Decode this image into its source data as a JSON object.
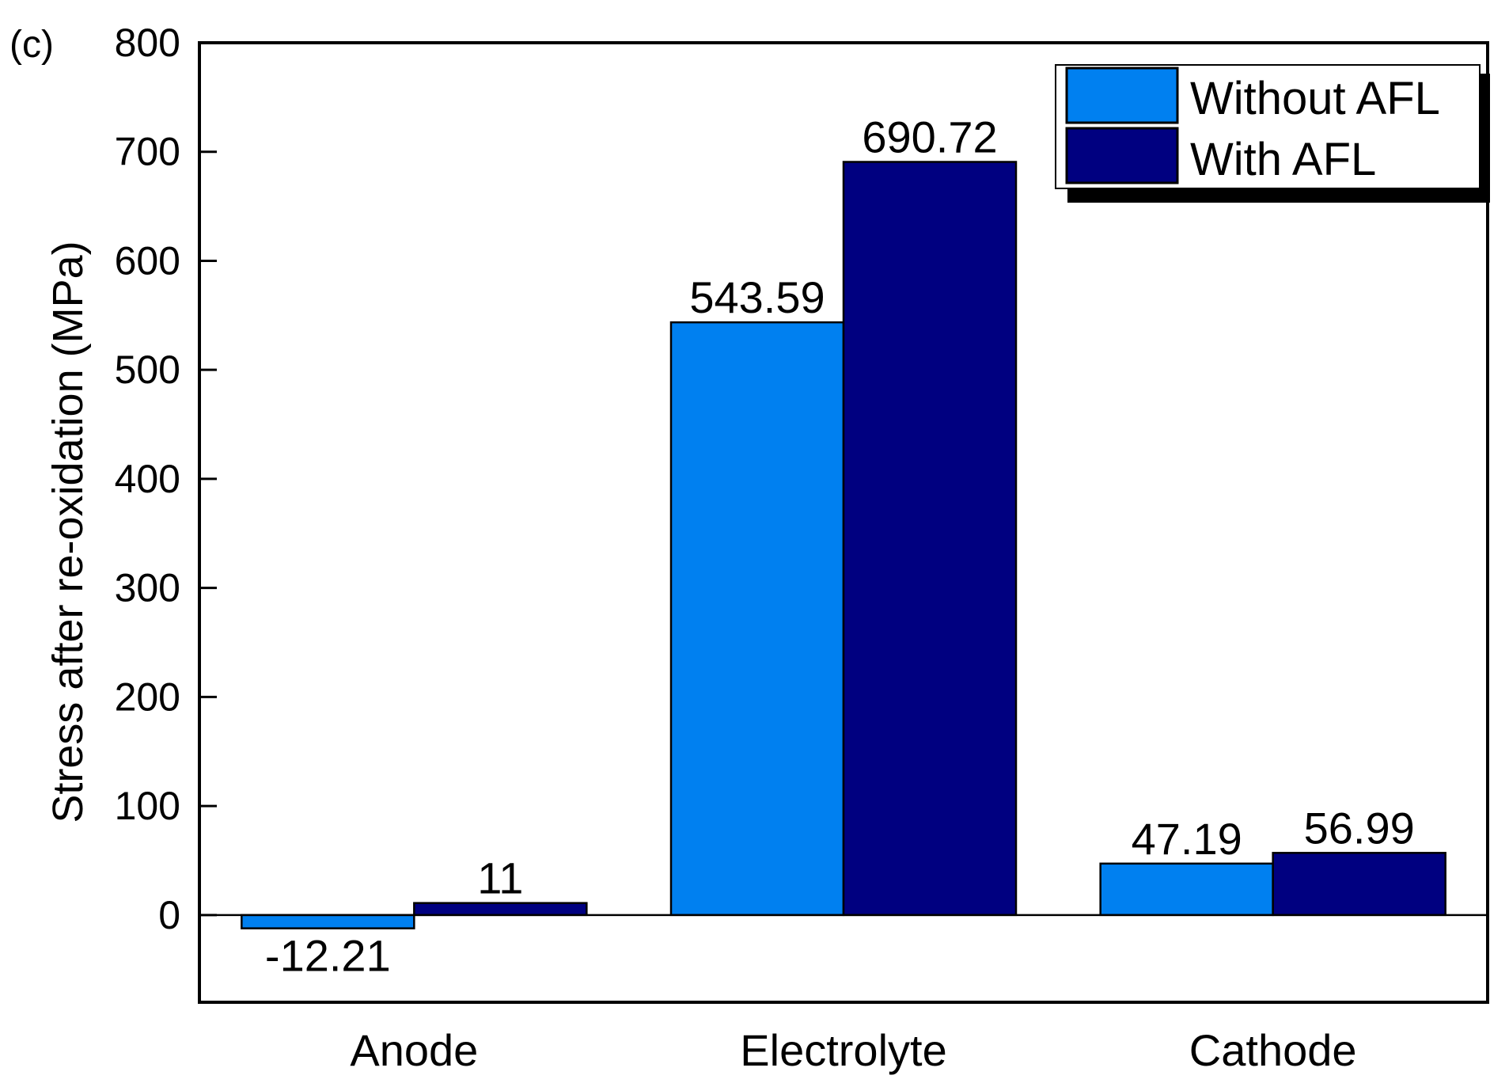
{
  "panel_label": "(c)",
  "colors": {
    "without_afl": "#0080F0",
    "with_afl": "#000080",
    "axis": "#000000"
  },
  "chart_data": {
    "type": "bar",
    "title": "",
    "xlabel": "",
    "ylabel": "Stress after re-oxidation (MPa)",
    "categories": [
      "Anode",
      "Electrolyte",
      "Cathode"
    ],
    "ylim": [
      -80,
      800
    ],
    "yticks": [
      0,
      100,
      200,
      300,
      400,
      500,
      600,
      700,
      800
    ],
    "legend_position": "top-right",
    "grid": false,
    "series": [
      {
        "name": "Without AFL",
        "values": [
          -12.21,
          543.59,
          47.19
        ],
        "labels": [
          "-12.21",
          "543.59",
          "47.19"
        ]
      },
      {
        "name": "With AFL",
        "values": [
          11,
          690.72,
          56.99
        ],
        "labels": [
          "11",
          "690.72",
          "56.99"
        ]
      }
    ]
  }
}
